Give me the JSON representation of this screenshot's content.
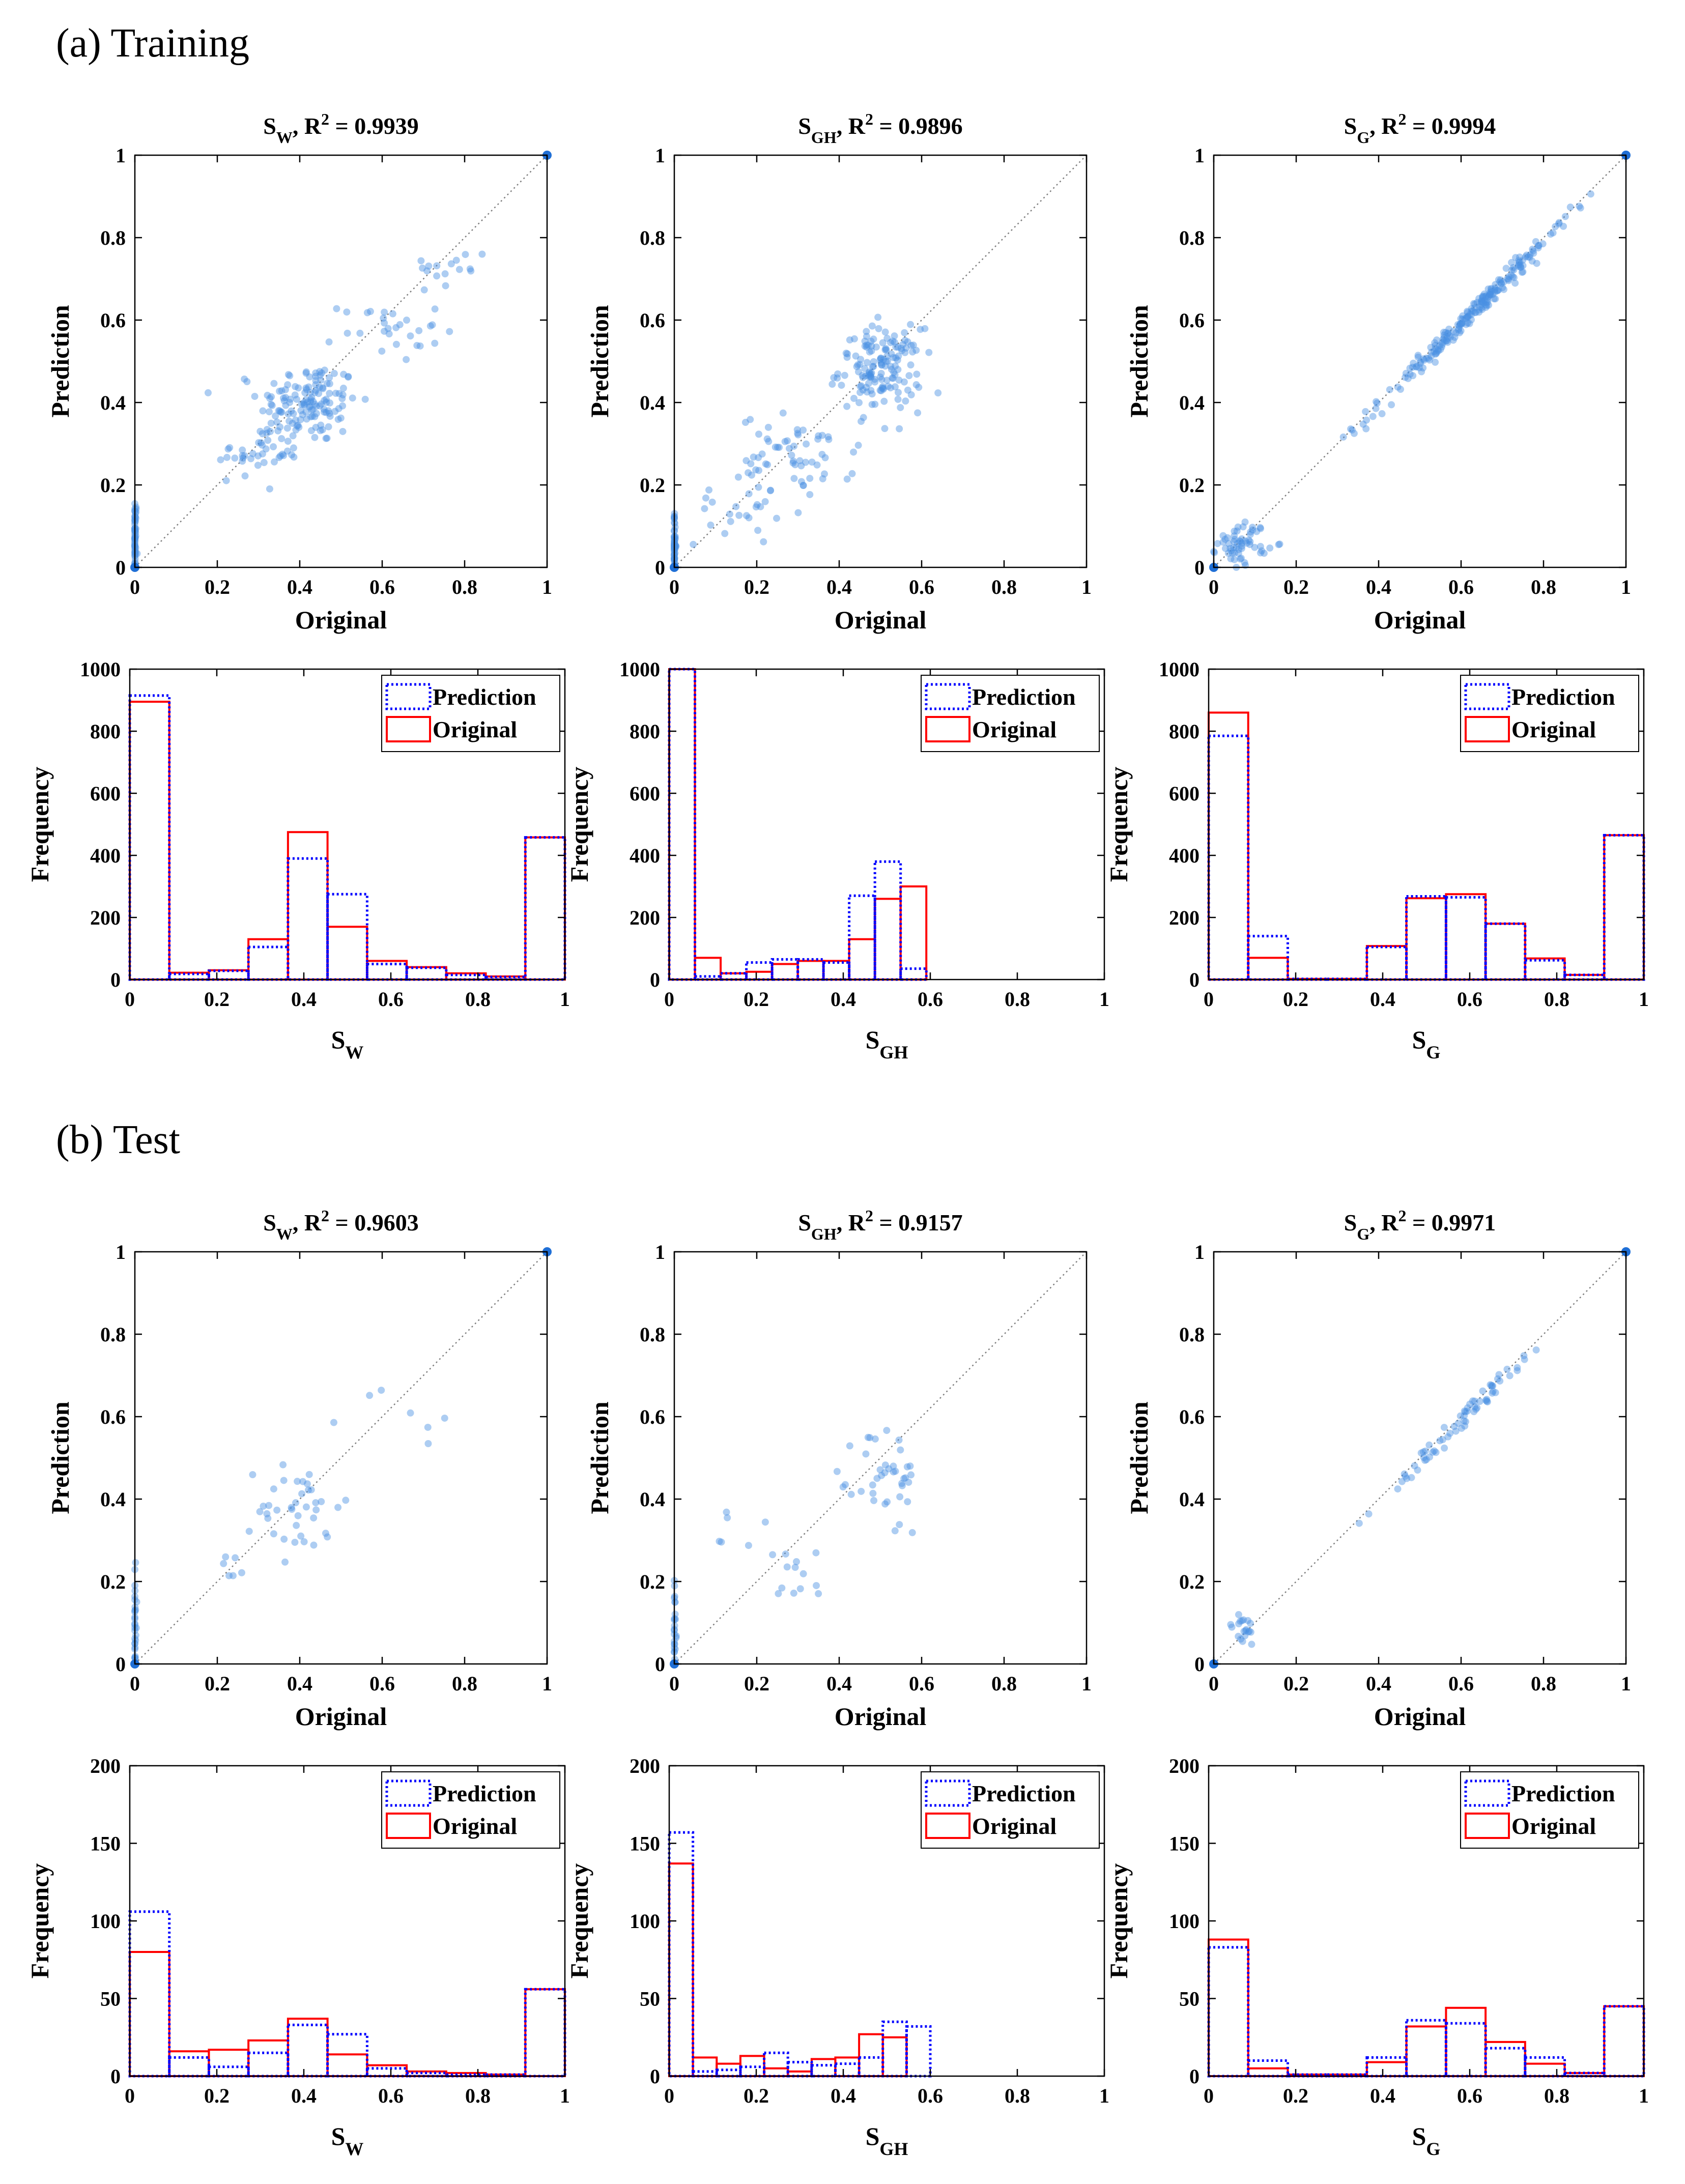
{
  "sections": {
    "training_label": "(a) Training",
    "test_label": "(b) Test"
  },
  "colors": {
    "prediction": "#0000ff",
    "original": "#ff0000",
    "scatter": "#4a90e2",
    "diagonal": "#808080"
  },
  "chart_data": [
    {
      "id": "train_sw_scatter",
      "type": "scatter",
      "title_var": "S",
      "title_sub": "W",
      "title_r2": "R",
      "title_r2_sup": "2",
      "title_value": "= 0.9939",
      "xlabel": "Original",
      "ylabel": "Prediction",
      "xlim": [
        0,
        1
      ],
      "ylim": [
        0,
        1
      ],
      "xticks": [
        "0",
        "0.2",
        "0.4",
        "0.6",
        "0.8",
        "1"
      ],
      "yticks": [
        "0",
        "0.2",
        "0.4",
        "0.6",
        "0.8",
        "1"
      ],
      "point_clusters": [
        {
          "cx": 0,
          "cy": 0.07,
          "sx": 0.002,
          "sy": 0.05,
          "n": 60
        },
        {
          "cx": 0.42,
          "cy": 0.4,
          "sx": 0.06,
          "sy": 0.05,
          "n": 140
        },
        {
          "cx": 0.3,
          "cy": 0.28,
          "sx": 0.05,
          "sy": 0.03,
          "n": 40
        },
        {
          "cx": 0.62,
          "cy": 0.58,
          "sx": 0.06,
          "sy": 0.04,
          "n": 30
        },
        {
          "cx": 0.78,
          "cy": 0.73,
          "sx": 0.04,
          "sy": 0.03,
          "n": 15
        }
      ],
      "highlight_points": [
        [
          1,
          1
        ],
        [
          0,
          0
        ]
      ]
    },
    {
      "id": "train_sgh_scatter",
      "type": "scatter",
      "title_var": "S",
      "title_sub": "GH",
      "title_r2": "R",
      "title_r2_sup": "2",
      "title_value": "= 0.9896",
      "xlabel": "Original",
      "ylabel": "Prediction",
      "xlim": [
        0,
        1
      ],
      "ylim": [
        0,
        1
      ],
      "xticks": [
        "0",
        "0.2",
        "0.4",
        "0.6",
        "0.8",
        "1"
      ],
      "yticks": [
        "0",
        "0.2",
        "0.4",
        "0.6",
        "0.8",
        "1"
      ],
      "point_clusters": [
        {
          "cx": 0,
          "cy": 0.05,
          "sx": 0.002,
          "sy": 0.04,
          "n": 60
        },
        {
          "cx": 0.5,
          "cy": 0.48,
          "sx": 0.05,
          "sy": 0.05,
          "n": 150
        },
        {
          "cx": 0.3,
          "cy": 0.27,
          "sx": 0.07,
          "sy": 0.05,
          "n": 60
        },
        {
          "cx": 0.15,
          "cy": 0.15,
          "sx": 0.05,
          "sy": 0.05,
          "n": 25
        }
      ],
      "highlight_points": [
        [
          0,
          0
        ]
      ]
    },
    {
      "id": "train_sg_scatter",
      "type": "scatter",
      "title_var": "S",
      "title_sub": "G",
      "title_r2": "R",
      "title_r2_sup": "2",
      "title_value": "= 0.9994",
      "xlabel": "Original",
      "ylabel": "Prediction",
      "xlim": [
        0,
        1
      ],
      "ylim": [
        0,
        1
      ],
      "xticks": [
        "0",
        "0.2",
        "0.4",
        "0.6",
        "0.8",
        "1"
      ],
      "yticks": [
        "0",
        "0.2",
        "0.4",
        "0.6",
        "0.8",
        "1"
      ],
      "point_clusters": [
        {
          "cx": 0.07,
          "cy": 0.06,
          "sx": 0.03,
          "sy": 0.025,
          "n": 60
        },
        {
          "cx": 0.62,
          "cy": 0.61,
          "sx": 0.12,
          "sy": 0.12,
          "n": 220,
          "diag": true
        }
      ],
      "highlight_points": [
        [
          1,
          1
        ],
        [
          0,
          0
        ]
      ]
    },
    {
      "id": "train_sw_hist",
      "type": "bar",
      "xlabel_var": "S",
      "xlabel_sub": "W",
      "ylabel": "Frequency",
      "xlim": [
        0,
        1
      ],
      "ylim": [
        0,
        1000
      ],
      "xticks": [
        "0",
        "0.2",
        "0.4",
        "0.6",
        "0.8",
        "1"
      ],
      "yticks": [
        "0",
        "200",
        "400",
        "600",
        "800",
        "1000"
      ],
      "bin_edges": [
        0,
        0.0909,
        0.1818,
        0.2727,
        0.3636,
        0.4545,
        0.5455,
        0.6364,
        0.7273,
        0.8182,
        0.9091,
        1
      ],
      "series": [
        {
          "name": "Prediction",
          "values": [
            915,
            18,
            28,
            105,
            390,
            275,
            50,
            38,
            15,
            8,
            458
          ]
        },
        {
          "name": "Original",
          "values": [
            895,
            22,
            30,
            130,
            475,
            170,
            60,
            40,
            20,
            10,
            458
          ]
        }
      ],
      "legend": [
        "Prediction",
        "Original"
      ]
    },
    {
      "id": "train_sgh_hist",
      "type": "bar",
      "xlabel_var": "S",
      "xlabel_sub": "GH",
      "ylabel": "Frequency",
      "xlim": [
        0,
        1
      ],
      "ylim": [
        0,
        1000
      ],
      "xticks": [
        "0",
        "0.2",
        "0.4",
        "0.6",
        "0.8",
        "1"
      ],
      "yticks": [
        "0",
        "200",
        "400",
        "600",
        "800",
        "1000"
      ],
      "bin_edges": [
        0,
        0.0591,
        0.1182,
        0.1773,
        0.2364,
        0.2955,
        0.3545,
        0.4136,
        0.4727,
        0.5318,
        0.5909,
        0.65
      ],
      "series": [
        {
          "name": "Prediction",
          "values": [
            1000,
            10,
            20,
            55,
            65,
            65,
            55,
            270,
            380,
            35,
            0
          ]
        },
        {
          "name": "Original",
          "values": [
            1000,
            70,
            20,
            25,
            50,
            60,
            60,
            130,
            260,
            300,
            0
          ]
        }
      ],
      "legend": [
        "Prediction",
        "Original"
      ]
    },
    {
      "id": "train_sg_hist",
      "type": "bar",
      "xlabel_var": "S",
      "xlabel_sub": "G",
      "ylabel": "Frequency",
      "xlim": [
        0,
        1
      ],
      "ylim": [
        0,
        1000
      ],
      "xticks": [
        "0",
        "0.2",
        "0.4",
        "0.6",
        "0.8",
        "1"
      ],
      "yticks": [
        "0",
        "200",
        "400",
        "600",
        "800",
        "1000"
      ],
      "bin_edges": [
        0,
        0.0909,
        0.1818,
        0.2727,
        0.3636,
        0.4545,
        0.5455,
        0.6364,
        0.7273,
        0.8182,
        0.9091,
        1
      ],
      "series": [
        {
          "name": "Prediction",
          "values": [
            785,
            140,
            2,
            2,
            105,
            268,
            265,
            180,
            62,
            15,
            465
          ]
        },
        {
          "name": "Original",
          "values": [
            860,
            70,
            2,
            2,
            108,
            262,
            275,
            180,
            68,
            15,
            465
          ]
        }
      ],
      "legend": [
        "Prediction",
        "Original"
      ]
    },
    {
      "id": "test_sw_scatter",
      "type": "scatter",
      "title_var": "S",
      "title_sub": "W",
      "title_r2": "R",
      "title_r2_sup": "2",
      "title_value": "= 0.9603",
      "xlabel": "Original",
      "ylabel": "Prediction",
      "xlim": [
        0,
        1
      ],
      "ylim": [
        0,
        1
      ],
      "xticks": [
        "0",
        "0.2",
        "0.4",
        "0.6",
        "0.8",
        "1"
      ],
      "yticks": [
        "0",
        "0.2",
        "0.4",
        "0.6",
        "0.8",
        "1"
      ],
      "point_clusters": [
        {
          "cx": 0,
          "cy": 0.1,
          "sx": 0.002,
          "sy": 0.08,
          "n": 30
        },
        {
          "cx": 0.4,
          "cy": 0.38,
          "sx": 0.05,
          "sy": 0.06,
          "n": 40
        },
        {
          "cx": 0.22,
          "cy": 0.23,
          "sx": 0.03,
          "sy": 0.02,
          "n": 6
        },
        {
          "cx": 0.7,
          "cy": 0.62,
          "sx": 0.08,
          "sy": 0.05,
          "n": 6
        }
      ],
      "highlight_points": [
        [
          1,
          1
        ],
        [
          0,
          0
        ]
      ]
    },
    {
      "id": "test_sgh_scatter",
      "type": "scatter",
      "title_var": "S",
      "title_sub": "GH",
      "title_r2": "R",
      "title_r2_sup": "2",
      "title_value": "= 0.9157",
      "xlabel": "Original",
      "ylabel": "Prediction",
      "xlim": [
        0,
        1
      ],
      "ylim": [
        0,
        1
      ],
      "xticks": [
        "0",
        "0.2",
        "0.4",
        "0.6",
        "0.8",
        "1"
      ],
      "yticks": [
        "0",
        "0.2",
        "0.4",
        "0.6",
        "0.8",
        "1"
      ],
      "point_clusters": [
        {
          "cx": 0,
          "cy": 0.08,
          "sx": 0.002,
          "sy": 0.07,
          "n": 30
        },
        {
          "cx": 0.52,
          "cy": 0.45,
          "sx": 0.04,
          "sy": 0.07,
          "n": 40
        },
        {
          "cx": 0.28,
          "cy": 0.22,
          "sx": 0.05,
          "sy": 0.06,
          "n": 15
        },
        {
          "cx": 0.12,
          "cy": 0.3,
          "sx": 0.02,
          "sy": 0.05,
          "n": 4
        }
      ],
      "highlight_points": [
        [
          0,
          0
        ]
      ]
    },
    {
      "id": "test_sg_scatter",
      "type": "scatter",
      "title_var": "S",
      "title_sub": "G",
      "title_r2": "R",
      "title_r2_sup": "2",
      "title_value": "= 0.9971",
      "xlabel": "Original",
      "ylabel": "Prediction",
      "xlim": [
        0,
        1
      ],
      "ylim": [
        0,
        1
      ],
      "xticks": [
        "0",
        "0.2",
        "0.4",
        "0.6",
        "0.8",
        "1"
      ],
      "yticks": [
        "0",
        "0.2",
        "0.4",
        "0.6",
        "0.8",
        "1"
      ],
      "point_clusters": [
        {
          "cx": 0.07,
          "cy": 0.08,
          "sx": 0.02,
          "sy": 0.02,
          "n": 20
        },
        {
          "cx": 0.62,
          "cy": 0.6,
          "sx": 0.1,
          "sy": 0.1,
          "n": 70,
          "diag": true
        }
      ],
      "highlight_points": [
        [
          1,
          1
        ],
        [
          0,
          0
        ]
      ]
    },
    {
      "id": "test_sw_hist",
      "type": "bar",
      "xlabel_var": "S",
      "xlabel_sub": "W",
      "ylabel": "Frequency",
      "xlim": [
        0,
        1
      ],
      "ylim": [
        0,
        200
      ],
      "xticks": [
        "0",
        "0.2",
        "0.4",
        "0.6",
        "0.8",
        "1"
      ],
      "yticks": [
        "0",
        "50",
        "100",
        "150",
        "200"
      ],
      "bin_edges": [
        0,
        0.0909,
        0.1818,
        0.2727,
        0.3636,
        0.4545,
        0.5455,
        0.6364,
        0.7273,
        0.8182,
        0.9091,
        1
      ],
      "series": [
        {
          "name": "Prediction",
          "values": [
            106,
            12,
            6,
            15,
            33,
            27,
            5,
            2,
            1,
            1,
            56
          ]
        },
        {
          "name": "Original",
          "values": [
            80,
            16,
            17,
            23,
            37,
            14,
            7,
            3,
            2,
            1,
            56
          ]
        }
      ],
      "legend": [
        "Prediction",
        "Original"
      ]
    },
    {
      "id": "test_sgh_hist",
      "type": "bar",
      "xlabel_var": "S",
      "xlabel_sub": "GH",
      "ylabel": "Frequency",
      "xlim": [
        0,
        1
      ],
      "ylim": [
        0,
        200
      ],
      "xticks": [
        "0",
        "0.2",
        "0.4",
        "0.6",
        "0.8",
        "1"
      ],
      "yticks": [
        "0",
        "50",
        "100",
        "150",
        "200"
      ],
      "bin_edges": [
        0,
        0.0545,
        0.1091,
        0.1636,
        0.2182,
        0.2727,
        0.3273,
        0.3818,
        0.4364,
        0.4909,
        0.5455,
        0.6
      ],
      "series": [
        {
          "name": "Prediction",
          "values": [
            157,
            3,
            4,
            6,
            15,
            9,
            7,
            8,
            12,
            35,
            32
          ]
        },
        {
          "name": "Original",
          "values": [
            137,
            12,
            8,
            13,
            5,
            3,
            11,
            12,
            27,
            25,
            0
          ]
        }
      ],
      "legend": [
        "Prediction",
        "Original"
      ]
    },
    {
      "id": "test_sg_hist",
      "type": "bar",
      "xlabel_var": "S",
      "xlabel_sub": "G",
      "ylabel": "Frequency",
      "xlim": [
        0,
        1
      ],
      "ylim": [
        0,
        200
      ],
      "xticks": [
        "0",
        "0.2",
        "0.4",
        "0.6",
        "0.8",
        "1"
      ],
      "yticks": [
        "0",
        "50",
        "100",
        "150",
        "200"
      ],
      "bin_edges": [
        0,
        0.0909,
        0.1818,
        0.2727,
        0.3636,
        0.4545,
        0.5455,
        0.6364,
        0.7273,
        0.8182,
        0.9091,
        1
      ],
      "series": [
        {
          "name": "Prediction",
          "values": [
            83,
            10,
            1,
            1,
            12,
            36,
            34,
            18,
            12,
            2,
            45
          ]
        },
        {
          "name": "Original",
          "values": [
            88,
            5,
            1,
            1,
            9,
            32,
            44,
            22,
            8,
            2,
            45
          ]
        }
      ],
      "legend": [
        "Prediction",
        "Original"
      ]
    }
  ]
}
